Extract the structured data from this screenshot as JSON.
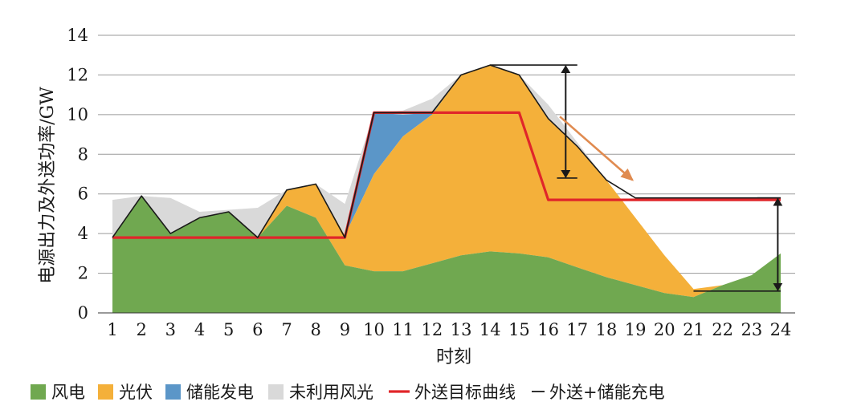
{
  "chart_data": {
    "type": "area",
    "xlabel": "时刻",
    "ylabel": "电源出力及外送功率/GW",
    "ylim": [
      0,
      14
    ],
    "yticks": [
      0,
      2,
      4,
      6,
      8,
      10,
      12,
      14
    ],
    "x": [
      1,
      2,
      3,
      4,
      5,
      6,
      7,
      8,
      9,
      10,
      11,
      12,
      13,
      14,
      15,
      16,
      17,
      18,
      19,
      20,
      21,
      22,
      23,
      24
    ],
    "grid": true,
    "legend_position": "bottom",
    "colors": {
      "wind": "#70a850",
      "solar": "#f4b03a",
      "storage": "#5b96c8",
      "curtail": "#d9d9d9",
      "target": "#e0262a",
      "total": "#1a1a1a",
      "arrow_black": "#1a1a1a",
      "arrow_orange": "#e08b50",
      "grid": "#9a9a9a"
    },
    "series": [
      {
        "name": "风电",
        "values": [
          3.8,
          5.9,
          4.0,
          4.8,
          5.1,
          3.8,
          5.4,
          4.8,
          2.4,
          2.1,
          2.1,
          2.5,
          2.9,
          3.1,
          3.0,
          2.8,
          2.3,
          1.8,
          1.4,
          1.0,
          0.8,
          1.4,
          1.9,
          3.0
        ]
      },
      {
        "name": "光伏",
        "values": [
          0,
          0,
          0,
          0,
          0,
          0,
          0.8,
          1.7,
          1.5,
          4.9,
          6.8,
          7.5,
          9.1,
          9.4,
          9.0,
          7.0,
          6.1,
          4.9,
          3.4,
          1.9,
          0.4,
          0,
          0,
          0
        ]
      },
      {
        "name": "储能发电",
        "values": [
          0,
          0,
          0,
          0,
          0,
          0,
          0,
          0,
          0,
          3.1,
          1.1,
          0.1,
          0,
          0,
          0,
          0,
          0,
          0,
          0,
          0,
          0,
          0,
          0,
          0
        ]
      },
      {
        "name": "未利用风光",
        "values": [
          1.9,
          0,
          1.8,
          0.3,
          0.1,
          1.5,
          0,
          0,
          1.6,
          0,
          0.2,
          0.7,
          0,
          0,
          0,
          0.7,
          0.2,
          0,
          0,
          0,
          0,
          0,
          0,
          0
        ]
      },
      {
        "name": "外送目标曲线",
        "values": [
          3.8,
          3.8,
          3.8,
          3.8,
          3.8,
          3.8,
          3.8,
          3.8,
          3.8,
          10.1,
          10.1,
          10.1,
          10.1,
          10.1,
          10.1,
          5.7,
          5.7,
          5.7,
          5.7,
          5.7,
          5.7,
          5.7,
          5.7,
          5.7
        ]
      },
      {
        "name": "外送+储能充电",
        "values": [
          3.8,
          5.9,
          4.0,
          4.8,
          5.1,
          3.8,
          6.2,
          6.5,
          3.8,
          10.1,
          10.1,
          10.1,
          12.0,
          12.5,
          12.0,
          9.8,
          8.4,
          6.7,
          5.8,
          5.8,
          5.8,
          5.8,
          5.8,
          5.8
        ]
      }
    ],
    "legend": [
      {
        "label": "风电",
        "kind": "box",
        "key": "wind"
      },
      {
        "label": "光伏",
        "kind": "box",
        "key": "solar"
      },
      {
        "label": "储能发电",
        "kind": "box",
        "key": "storage"
      },
      {
        "label": "未利用风光",
        "kind": "box",
        "key": "curtail"
      },
      {
        "label": "外送目标曲线",
        "kind": "line",
        "key": "target"
      },
      {
        "label": "外送+储能充电",
        "kind": "line",
        "key": "total"
      }
    ],
    "annotations": [
      {
        "kind": "double-arrow",
        "x": 16.6,
        "from": 6.8,
        "to": 12.5,
        "cap_from": [
          16.3,
          17.0
        ],
        "cap_to": [
          14.0,
          17.0
        ]
      },
      {
        "kind": "double-arrow",
        "x": 23.9,
        "from": 1.1,
        "to": 5.8,
        "cap_from": [
          21.0,
          24.0
        ],
        "cap_to": [
          23.2,
          24.0
        ]
      },
      {
        "kind": "arrow",
        "from": [
          16.4,
          9.9
        ],
        "to": [
          18.9,
          6.7
        ]
      }
    ]
  }
}
